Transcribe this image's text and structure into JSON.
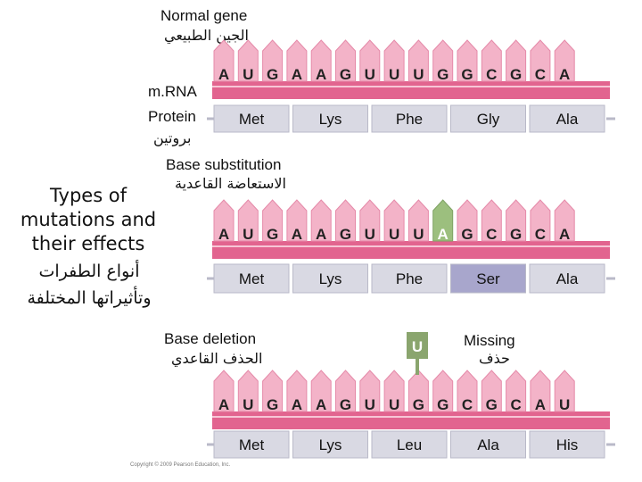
{
  "title": {
    "line1": "Types of",
    "line2": "mutations and",
    "line3": "their effects",
    "ar_line1": "أنواع الطفرات",
    "ar_line2": "وتأثيراتها المختلفة"
  },
  "labels": {
    "normal_gene": "Normal gene",
    "normal_gene_ar": "الجين الطبيعي",
    "mrna": "m.RNA",
    "protein": "Protein",
    "protein_ar": "بروتين",
    "base_substitution": "Base substitution",
    "base_substitution_ar": "الاستعاضة القاعدية",
    "base_deletion": "Base deletion",
    "base_deletion_ar": "الحذف القاعدي",
    "missing": "Missing",
    "missing_ar": "حذف",
    "deleted_base": "U",
    "copyright": "Copyright © 2009 Pearson Education, Inc."
  },
  "rows": [
    {
      "name": "normal",
      "bases": [
        "A",
        "U",
        "G",
        "A",
        "A",
        "G",
        "U",
        "U",
        "U",
        "G",
        "G",
        "C",
        "G",
        "C",
        "A"
      ],
      "highlight_index": -1,
      "codons": [
        "Met",
        "Lys",
        "Phe",
        "Gly",
        "Ala"
      ],
      "mutant_codon_index": -1
    },
    {
      "name": "substitution",
      "bases": [
        "A",
        "U",
        "G",
        "A",
        "A",
        "G",
        "U",
        "U",
        "U",
        "A",
        "G",
        "C",
        "G",
        "C",
        "A"
      ],
      "highlight_index": 9,
      "codons": [
        "Met",
        "Lys",
        "Phe",
        "Ser",
        "Ala"
      ],
      "mutant_codon_index": 3
    },
    {
      "name": "deletion",
      "bases": [
        "A",
        "U",
        "G",
        "A",
        "A",
        "G",
        "U",
        "U",
        "G",
        "G",
        "C",
        "G",
        "C",
        "A",
        "U"
      ],
      "highlight_index": -1,
      "codons": [
        "Met",
        "Lys",
        "Leu",
        "Ala",
        "His"
      ],
      "mutant_codon_index": 2
    }
  ],
  "colors": {
    "backbone": "#e2648f",
    "tooth": "#f3b3c8",
    "base_text": "#222222",
    "codon_box": "#d9d9e3",
    "codon_mutant": "#a8a6cc",
    "highlight_tooth": "#9cbf7e",
    "highlight_text": "#ffffff",
    "deleted_tag": "#8aa56e"
  }
}
